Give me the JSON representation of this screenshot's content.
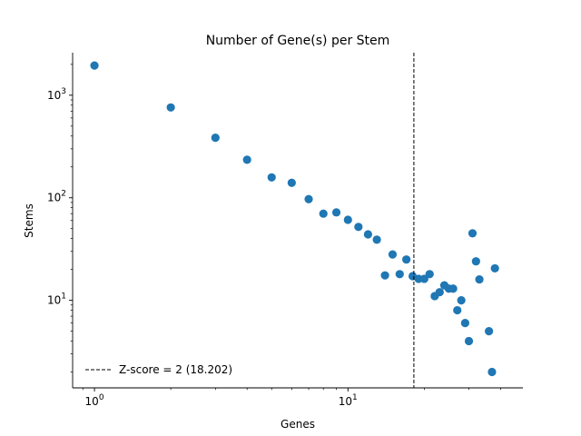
{
  "chart_data": {
    "type": "scatter",
    "title": "Number of Gene(s) per Stem",
    "xlabel": "Genes",
    "ylabel": "Stems",
    "xscale": "log",
    "yscale": "log",
    "xlim": [
      0.82,
      49
    ],
    "ylim": [
      1.4,
      2600
    ],
    "xticks": [
      {
        "value": 1,
        "label_base": "10",
        "label_exp": "0"
      },
      {
        "value": 10,
        "label_base": "10",
        "label_exp": "1"
      }
    ],
    "yticks": [
      {
        "value": 10,
        "label_base": "10",
        "label_exp": "1"
      },
      {
        "value": 100,
        "label_base": "10",
        "label_exp": "2"
      },
      {
        "value": 1000,
        "label_base": "10",
        "label_exp": "3"
      }
    ],
    "grid": false,
    "legend_position": "lower-left",
    "marker_color": "#1f77b4",
    "series": [
      {
        "points": [
          [
            1,
            1950
          ],
          [
            2,
            760
          ],
          [
            3,
            385
          ],
          [
            4,
            235
          ],
          [
            5,
            158
          ],
          [
            6,
            140
          ],
          [
            7,
            97
          ],
          [
            8,
            70
          ],
          [
            9,
            72
          ],
          [
            10,
            61
          ],
          [
            11,
            52
          ],
          [
            12,
            44
          ],
          [
            13,
            39
          ],
          [
            14,
            17.5
          ],
          [
            15,
            28
          ],
          [
            16,
            18
          ],
          [
            17,
            25
          ],
          [
            18,
            17.2
          ],
          [
            19,
            16.2
          ],
          [
            20,
            16.2
          ],
          [
            21,
            18
          ],
          [
            22,
            11
          ],
          [
            23,
            12
          ],
          [
            24,
            14
          ],
          [
            25,
            13
          ],
          [
            26,
            13
          ],
          [
            27,
            8
          ],
          [
            28,
            10
          ],
          [
            29,
            6
          ],
          [
            30,
            4
          ],
          [
            31,
            45
          ],
          [
            32,
            24
          ],
          [
            33,
            16
          ],
          [
            36,
            5
          ],
          [
            37,
            2
          ],
          [
            38,
            20.5
          ]
        ]
      }
    ],
    "reference_line": {
      "label": "Z-score = 2 (18.202)",
      "x": 18.202,
      "style": "dashed",
      "color": "#000000"
    }
  }
}
